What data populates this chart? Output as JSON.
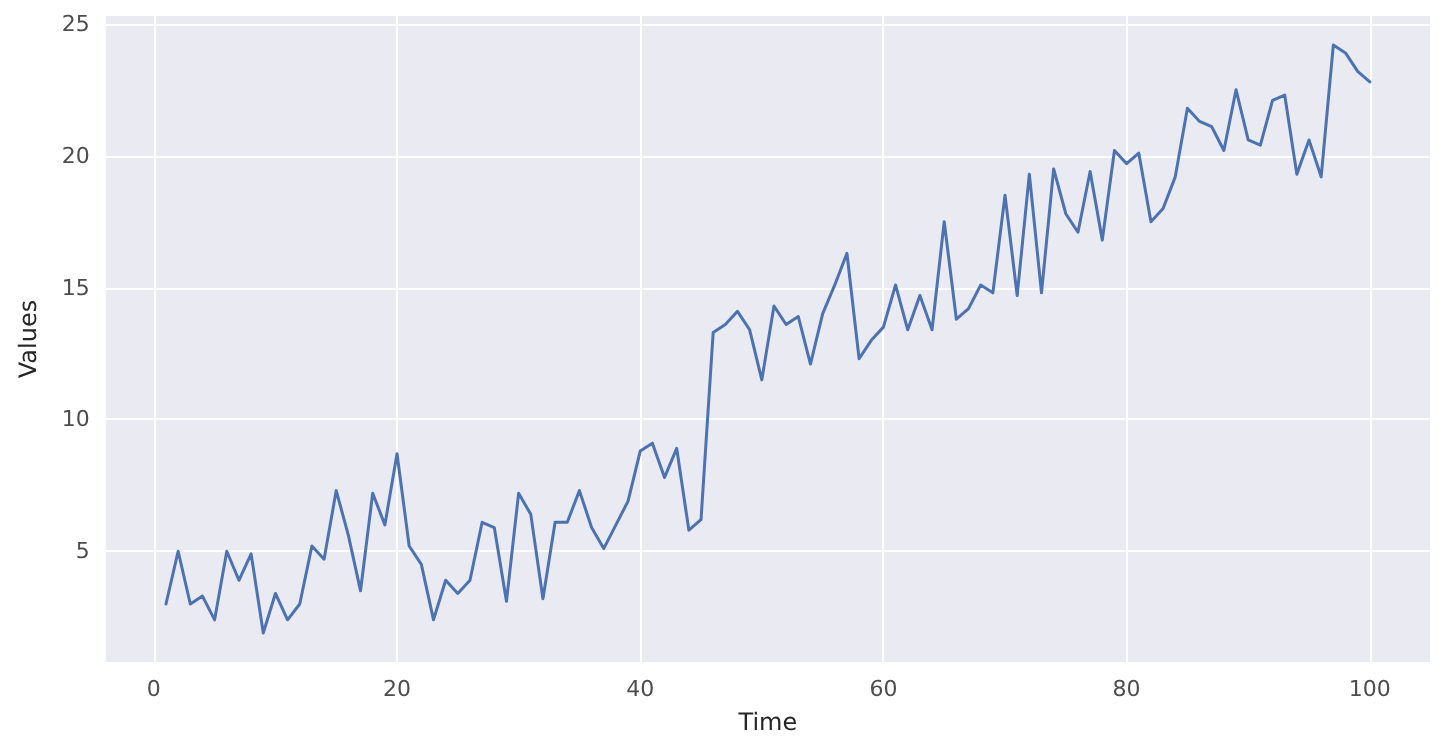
{
  "chart_data": {
    "type": "line",
    "xlabel": "Time",
    "ylabel": "Values",
    "x": [
      1,
      2,
      3,
      4,
      5,
      6,
      7,
      8,
      9,
      10,
      11,
      12,
      13,
      14,
      15,
      16,
      17,
      18,
      19,
      20,
      21,
      22,
      23,
      24,
      25,
      26,
      27,
      28,
      29,
      30,
      31,
      32,
      33,
      34,
      35,
      36,
      37,
      38,
      39,
      40,
      41,
      42,
      43,
      44,
      45,
      46,
      47,
      48,
      49,
      50,
      51,
      52,
      53,
      54,
      55,
      56,
      57,
      58,
      59,
      60,
      61,
      62,
      63,
      64,
      65,
      66,
      67,
      68,
      69,
      70,
      71,
      72,
      73,
      74,
      75,
      76,
      77,
      78,
      79,
      80,
      81,
      82,
      83,
      84,
      85,
      86,
      87,
      88,
      89,
      90,
      91,
      92,
      93,
      94,
      95,
      96,
      97,
      98,
      99,
      100
    ],
    "series": [
      {
        "color": "#4c72b0",
        "values": [
          3.0,
          5.0,
          3.0,
          3.3,
          2.4,
          5.0,
          3.9,
          4.9,
          1.9,
          3.4,
          2.4,
          3.0,
          5.2,
          4.7,
          7.3,
          5.6,
          3.5,
          7.2,
          6.0,
          8.7,
          5.2,
          4.5,
          2.4,
          3.9,
          3.4,
          3.9,
          6.1,
          5.9,
          3.1,
          7.2,
          6.4,
          3.2,
          6.1,
          6.1,
          7.3,
          5.9,
          5.1,
          6.0,
          6.9,
          8.8,
          9.1,
          7.8,
          8.9,
          5.8,
          6.2,
          13.3,
          13.6,
          14.1,
          13.4,
          11.5,
          14.3,
          13.6,
          13.9,
          12.1,
          14.0,
          15.1,
          16.3,
          12.3,
          13.0,
          13.5,
          15.1,
          13.4,
          14.7,
          13.4,
          17.5,
          13.8,
          14.2,
          15.1,
          14.8,
          18.5,
          14.7,
          19.3,
          14.8,
          19.5,
          17.8,
          17.1,
          19.4,
          16.8,
          20.2,
          19.7,
          20.1,
          17.5,
          18.0,
          19.2,
          21.8,
          21.3,
          21.1,
          20.2,
          22.5,
          20.6,
          20.4,
          22.1,
          22.3,
          19.3,
          20.6,
          19.2,
          24.2,
          23.9,
          23.2,
          22.8
        ]
      }
    ],
    "xlim": [
      -3.95,
      104.95
    ],
    "ylim": [
      0.8,
      25.3
    ],
    "xticks": [
      0,
      20,
      40,
      60,
      80,
      100
    ],
    "yticks": [
      5,
      10,
      15,
      20,
      25
    ],
    "grid": true,
    "marker": "none",
    "line_style": "solid"
  }
}
